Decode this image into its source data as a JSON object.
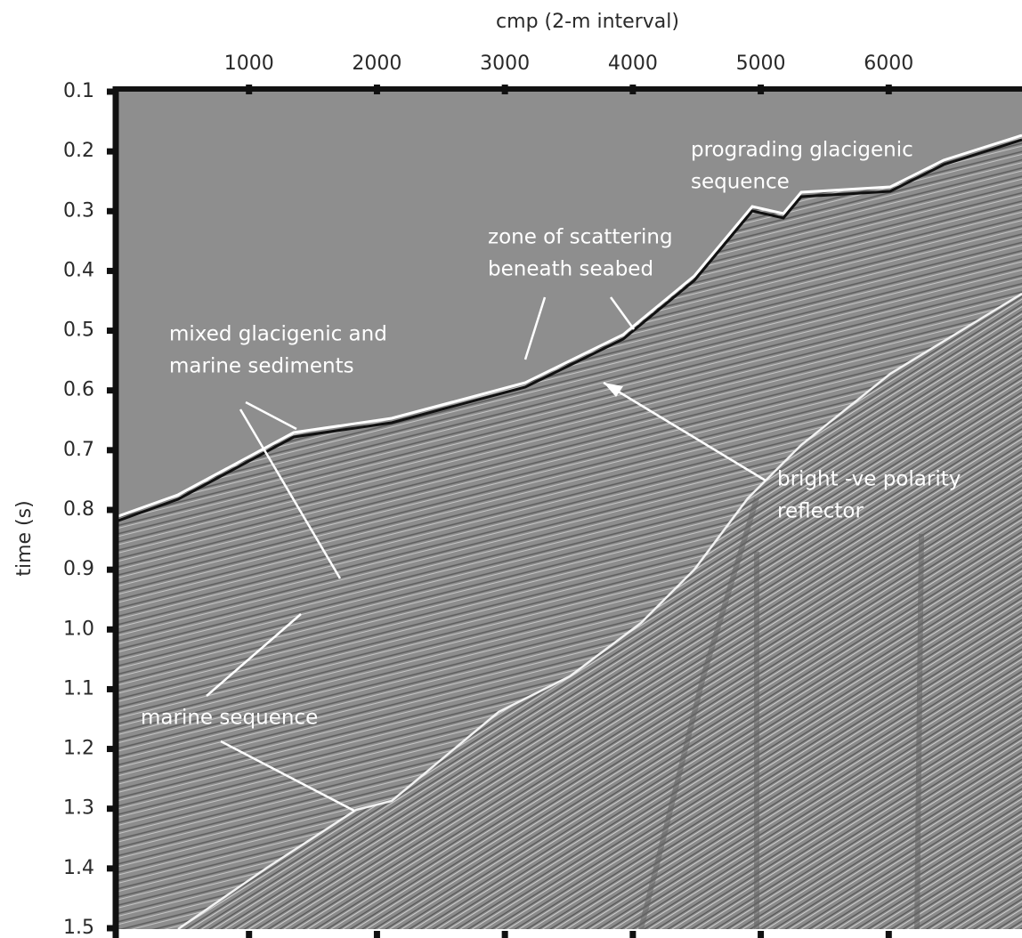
{
  "chart_data": {
    "type": "seismic-section",
    "x_label": "cmp (2-m interval)",
    "y_label": "time (s)",
    "xlim": [
      0,
      7000
    ],
    "xticks": [
      1000,
      2000,
      3000,
      4000,
      5000,
      6000
    ],
    "ylim": [
      0.1,
      1.5
    ],
    "yticks": [
      0.1,
      0.2,
      0.3,
      0.4,
      0.5,
      0.6,
      0.7,
      0.8,
      0.9,
      {
        "value": 1,
        "label": "1.0"
      },
      1.1,
      1.2,
      1.3,
      1.4,
      1.5
    ],
    "y_inverted": true,
    "annotations": [
      {
        "lines": [
          "prograding glacigenic",
          "sequence"
        ]
      },
      {
        "lines": [
          "zone of scattering",
          "beneath seabed"
        ]
      },
      {
        "lines": [
          "mixed glacigenic and",
          "marine sediments"
        ]
      },
      {
        "lines": [
          "bright -ve polarity",
          "reflector"
        ]
      },
      {
        "lines": [
          "marine sequence"
        ]
      }
    ]
  }
}
